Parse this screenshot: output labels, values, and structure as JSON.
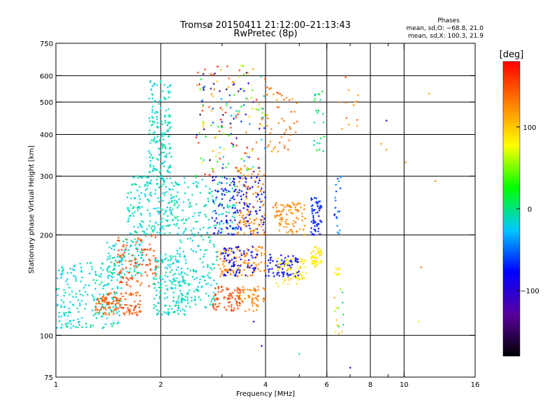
{
  "chart_data": {
    "type": "scatter",
    "title": "Tromsø 20150411 21:12:00–21:13:43",
    "subtitle": "RwPretec (8p)",
    "xlabel": "Frequency [MHz]",
    "ylabel": "Stationary phase Virtual Height [km]",
    "x_scale": "log",
    "y_scale": "log",
    "xlim": [
      1,
      16
    ],
    "ylim": [
      75,
      750
    ],
    "x_ticks": [
      1,
      2,
      4,
      6,
      8,
      10,
      16
    ],
    "x_tick_labels": [
      "1",
      "2",
      "4",
      "6",
      "8",
      "10",
      "16"
    ],
    "x_minor_ticks": [
      3,
      5,
      7,
      9
    ],
    "x_gridlines": [
      2,
      4,
      6,
      8,
      10
    ],
    "y_ticks": [
      75,
      100,
      200,
      300,
      400,
      500,
      600,
      750
    ],
    "y_tick_labels": [
      "75",
      "100",
      "200",
      "300",
      "400",
      "500",
      "600",
      "750"
    ],
    "y_gridlines": [
      100,
      200,
      300,
      400,
      500,
      600
    ],
    "grid": true,
    "legend": {
      "title": "Phases",
      "lines": [
        "mean, sd,O: −68.8, 21.0",
        "mean, sd,X: 100.3, 21.9"
      ]
    },
    "colorbar": {
      "label": "[deg]",
      "min": -180,
      "max": 180,
      "ticks": [
        100,
        0,
        -100
      ],
      "tick_labels": [
        "100",
        "0",
        "−100"
      ],
      "colors": [
        "#000000",
        "#5a00a0",
        "#0000ff",
        "#00c8ff",
        "#00ff00",
        "#ffff00",
        "#ff8000",
        "#ff0000"
      ]
    },
    "clusters": [
      {
        "x": [
          1.0,
          1.55
        ],
        "y": [
          105,
          165
        ],
        "n": 220,
        "phase": [
          -40,
          -20
        ]
      },
      {
        "x": [
          1.3,
          1.75
        ],
        "y": [
          115,
          135
        ],
        "n": 120,
        "phase": [
          130,
          150
        ]
      },
      {
        "x": [
          1.5,
          1.95
        ],
        "y": [
          140,
          200
        ],
        "n": 110,
        "phase": [
          130,
          160
        ]
      },
      {
        "x": [
          1.4,
          1.8
        ],
        "y": [
          150,
          195
        ],
        "n": 90,
        "phase": [
          -40,
          -20
        ]
      },
      {
        "x": [
          1.6,
          2.3
        ],
        "y": [
          200,
          300
        ],
        "n": 220,
        "phase": [
          -40,
          -20
        ]
      },
      {
        "x": [
          1.85,
          2.15
        ],
        "y": [
          300,
          580
        ],
        "n": 160,
        "phase": [
          -40,
          -20
        ]
      },
      {
        "x": [
          1.9,
          2.4
        ],
        "y": [
          115,
          175
        ],
        "n": 160,
        "phase": [
          -40,
          -20
        ]
      },
      {
        "x": [
          2.2,
          2.9
        ],
        "y": [
          120,
          200
        ],
        "n": 130,
        "phase": [
          -40,
          -20
        ]
      },
      {
        "x": [
          2.3,
          3.3
        ],
        "y": [
          200,
          300
        ],
        "n": 120,
        "phase": [
          -40,
          -20
        ]
      },
      {
        "x": [
          2.8,
          3.4
        ],
        "y": [
          118,
          140
        ],
        "n": 70,
        "phase": [
          140,
          160
        ]
      },
      {
        "x": [
          2.9,
          4.0
        ],
        "y": [
          150,
          185
        ],
        "n": 110,
        "phase": [
          110,
          130
        ]
      },
      {
        "x": [
          3.0,
          3.8
        ],
        "y": [
          150,
          185
        ],
        "n": 70,
        "phase": [
          -110,
          -90
        ]
      },
      {
        "x": [
          3.3,
          4.0
        ],
        "y": [
          118,
          140
        ],
        "n": 60,
        "phase": [
          110,
          130
        ]
      },
      {
        "x": [
          2.8,
          4.0
        ],
        "y": [
          200,
          300
        ],
        "n": 150,
        "phase": [
          -110,
          -90
        ]
      },
      {
        "x": [
          3.3,
          4.0
        ],
        "y": [
          200,
          320
        ],
        "n": 90,
        "phase": [
          110,
          130
        ]
      },
      {
        "x": [
          2.5,
          4.0
        ],
        "y": [
          300,
          650
        ],
        "n": 180,
        "phase": [
          -180,
          180
        ]
      },
      {
        "x": [
          4.0,
          5.0
        ],
        "y": [
          150,
          175
        ],
        "n": 70,
        "phase": [
          -110,
          -90
        ]
      },
      {
        "x": [
          4.3,
          5.3
        ],
        "y": [
          140,
          170
        ],
        "n": 60,
        "phase": [
          60,
          90
        ]
      },
      {
        "x": [
          4.2,
          5.2
        ],
        "y": [
          200,
          250
        ],
        "n": 90,
        "phase": [
          100,
          130
        ]
      },
      {
        "x": [
          4.0,
          5.0
        ],
        "y": [
          350,
          560
        ],
        "n": 50,
        "phase": [
          110,
          140
        ]
      },
      {
        "x": [
          5.4,
          5.8
        ],
        "y": [
          160,
          185
        ],
        "n": 50,
        "phase": [
          60,
          80
        ]
      },
      {
        "x": [
          5.4,
          5.8
        ],
        "y": [
          200,
          260
        ],
        "n": 60,
        "phase": [
          -100,
          -80
        ]
      },
      {
        "x": [
          5.5,
          5.9
        ],
        "y": [
          350,
          540
        ],
        "n": 25,
        "phase": [
          -30,
          0
        ]
      },
      {
        "x": [
          6.3,
          6.6
        ],
        "y": [
          150,
          160
        ],
        "n": 10,
        "phase": [
          60,
          80
        ]
      },
      {
        "x": [
          6.3,
          6.6
        ],
        "y": [
          200,
          300
        ],
        "n": 20,
        "phase": [
          -100,
          -40
        ]
      },
      {
        "x": [
          6.3,
          6.7
        ],
        "y": [
          100,
          140
        ],
        "n": 15,
        "phase": [
          -60,
          120
        ]
      },
      {
        "x": [
          6.6,
          7.4
        ],
        "y": [
          380,
          600
        ],
        "n": 12,
        "phase": [
          100,
          140
        ]
      }
    ],
    "scattered_points": [
      {
        "x": 8.9,
        "y": 440,
        "phase": -110
      },
      {
        "x": 8.6,
        "y": 375,
        "phase": 110
      },
      {
        "x": 8.9,
        "y": 360,
        "phase": 110
      },
      {
        "x": 11.2,
        "y": 160,
        "phase": 130
      },
      {
        "x": 11.0,
        "y": 110,
        "phase": 50
      },
      {
        "x": 12.3,
        "y": 290,
        "phase": 120
      },
      {
        "x": 11.8,
        "y": 530,
        "phase": 110
      },
      {
        "x": 7.0,
        "y": 80,
        "phase": -110
      },
      {
        "x": 5.0,
        "y": 88,
        "phase": -20
      },
      {
        "x": 3.9,
        "y": 93,
        "phase": -110
      },
      {
        "x": 3.7,
        "y": 110,
        "phase": -110
      },
      {
        "x": 6.5,
        "y": 500,
        "phase": 120
      },
      {
        "x": 10.1,
        "y": 330,
        "phase": 120
      }
    ]
  }
}
